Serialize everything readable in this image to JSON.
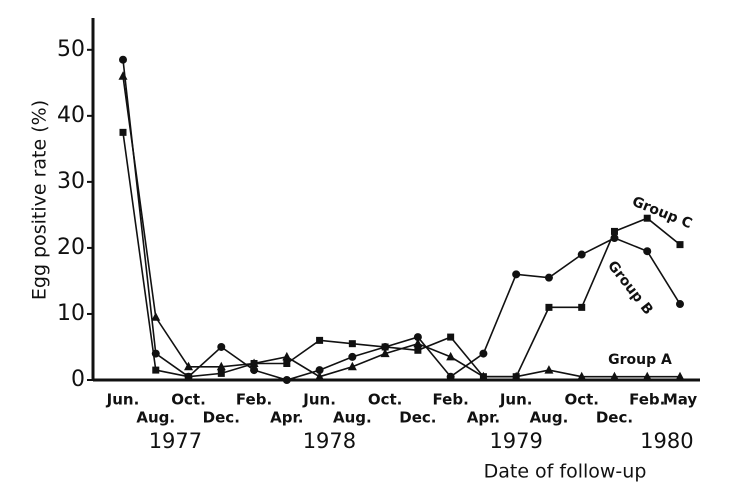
{
  "chart_data": {
    "type": "line",
    "y_label": "Egg positive rate (%)",
    "x_label": "Date of follow-up",
    "categories": [
      "Jun.",
      "Aug.",
      "Oct.",
      "Dec.",
      "Feb.",
      "Apr.",
      "Jun.",
      "Aug.",
      "Oct.",
      "Dec.",
      "Feb.",
      "Apr.",
      "Jun.",
      "Aug.",
      "Oct.",
      "Dec.",
      "Feb.",
      "May"
    ],
    "years": [
      "1977",
      "1978",
      "1979",
      "1980"
    ],
    "ylim": [
      0,
      53
    ],
    "yticks": [
      0,
      10,
      20,
      30,
      40,
      50
    ],
    "series": [
      {
        "name": "Group A",
        "color": "#111111",
        "marker": "triangle",
        "values": [
          46,
          9.5,
          2,
          2,
          2.5,
          3.5,
          0.5,
          2,
          4,
          5.5,
          3.5,
          0.5,
          0.5,
          1.5,
          0.5,
          0.5,
          0.5,
          0.5
        ]
      },
      {
        "name": "Group B",
        "color": "#111111",
        "marker": "circle",
        "values": [
          48.5,
          4,
          0.5,
          5,
          1.5,
          0,
          1.5,
          3.5,
          5,
          6.5,
          0.5,
          4,
          16,
          15.5,
          19,
          21.5,
          19.5,
          11.5
        ]
      },
      {
        "name": "Group C",
        "color": "#111111",
        "marker": "square",
        "values": [
          37.5,
          1.5,
          0.5,
          1,
          2.5,
          2.5,
          6,
          5.5,
          5,
          4.5,
          6.5,
          0.5,
          0.5,
          11,
          11,
          22.5,
          24.5,
          20.5
        ]
      }
    ]
  }
}
